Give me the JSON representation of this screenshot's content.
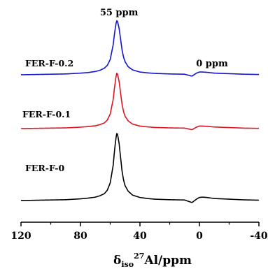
{
  "chart_data": {
    "type": "line",
    "title": "",
    "xlabel_parts": {
      "delta": "δ",
      "sub": "iso",
      "sup": "27",
      "rest": "Al/ppm"
    },
    "xlim": [
      120,
      -40
    ],
    "xticks": [
      120,
      80,
      40,
      0,
      -40
    ],
    "grid": false,
    "annotations": [
      {
        "text": "55 ppm",
        "x": 55
      },
      {
        "text": "0 ppm",
        "x": 0
      }
    ],
    "series": [
      {
        "name": "FER-F-0.2",
        "color": "#1414d0",
        "peak_x": 55.5,
        "peak_height": 1.0,
        "minor_peak_x": 0,
        "minor_peak_height": 0.06,
        "x": [
          120,
          100,
          90,
          80,
          75,
          70,
          67,
          64,
          62,
          60,
          58,
          57,
          56,
          55.5,
          55,
          54,
          53,
          52,
          51,
          50,
          48,
          45,
          40,
          35,
          30,
          20,
          10,
          5,
          2,
          0,
          -2,
          -5,
          -10,
          -20,
          -30,
          -40
        ],
        "y": [
          0.0,
          0.01,
          0.015,
          0.03,
          0.04,
          0.06,
          0.08,
          0.12,
          0.17,
          0.28,
          0.55,
          0.78,
          0.95,
          1.0,
          0.97,
          0.85,
          0.65,
          0.45,
          0.32,
          0.24,
          0.15,
          0.09,
          0.05,
          0.035,
          0.025,
          0.015,
          0.01,
          -0.025,
          0.03,
          0.05,
          0.05,
          0.045,
          0.03,
          0.02,
          0.01,
          0.005
        ]
      },
      {
        "name": "FER-F-0.1",
        "color": "#e0141e",
        "peak_x": 55.5,
        "peak_height": 1.0,
        "minor_peak_x": 0,
        "minor_peak_height": 0.05,
        "x": [
          120,
          100,
          90,
          80,
          75,
          70,
          67,
          64,
          62,
          60,
          58,
          57,
          56,
          55.5,
          55,
          54,
          53,
          52,
          51,
          50,
          48,
          45,
          40,
          35,
          30,
          20,
          10,
          5,
          2,
          0,
          -2,
          -5,
          -10,
          -20,
          -30,
          -40
        ],
        "y": [
          0.0,
          0.008,
          0.012,
          0.025,
          0.035,
          0.05,
          0.07,
          0.1,
          0.15,
          0.26,
          0.52,
          0.76,
          0.94,
          1.0,
          0.97,
          0.84,
          0.63,
          0.43,
          0.3,
          0.22,
          0.14,
          0.08,
          0.045,
          0.03,
          0.02,
          0.012,
          0.008,
          -0.02,
          0.025,
          0.045,
          0.045,
          0.04,
          0.028,
          0.018,
          0.008,
          0.004
        ]
      },
      {
        "name": "FER-F-0",
        "color": "#000000",
        "peak_x": 55.5,
        "peak_height": 1.0,
        "minor_peak_x": 0,
        "minor_peak_height": 0.05,
        "x": [
          120,
          100,
          90,
          80,
          75,
          70,
          67,
          64,
          62,
          60,
          58,
          57,
          56,
          55.5,
          55,
          54,
          53,
          52,
          51,
          50,
          48,
          45,
          40,
          35,
          30,
          20,
          10,
          5,
          2,
          0,
          -2,
          -5,
          -10,
          -20,
          -30,
          -40
        ],
        "y": [
          0.0,
          0.008,
          0.012,
          0.025,
          0.035,
          0.05,
          0.07,
          0.1,
          0.15,
          0.26,
          0.52,
          0.76,
          0.94,
          1.0,
          0.97,
          0.84,
          0.63,
          0.43,
          0.3,
          0.22,
          0.14,
          0.08,
          0.045,
          0.03,
          0.02,
          0.012,
          0.008,
          -0.03,
          0.02,
          0.045,
          0.05,
          0.045,
          0.03,
          0.02,
          0.01,
          0.005
        ]
      }
    ]
  }
}
